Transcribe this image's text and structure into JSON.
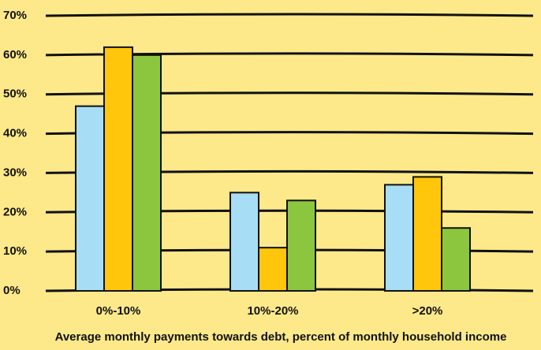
{
  "chart_data": {
    "type": "bar",
    "x_label": "Average monthly payments towards debt, percent of monthly household income",
    "categories": [
      "0%-10%",
      "10%-20%",
      ">20%"
    ],
    "series": [
      {
        "color": "#a8def5",
        "values": [
          47,
          25,
          27
        ]
      },
      {
        "color": "#ffc60b",
        "values": [
          62,
          11,
          29
        ]
      },
      {
        "color": "#8cc63f",
        "values": [
          60,
          23,
          16
        ]
      }
    ],
    "ylim": [
      0,
      70
    ],
    "yticks": [
      {
        "value": 0,
        "label": "0%"
      },
      {
        "value": 10,
        "label": "10%"
      },
      {
        "value": 20,
        "label": "20%"
      },
      {
        "value": 30,
        "label": "30%"
      },
      {
        "value": 40,
        "label": "40%"
      },
      {
        "value": 50,
        "label": "50%"
      },
      {
        "value": 60,
        "label": "60%"
      },
      {
        "value": 70,
        "label": "70%"
      }
    ],
    "grid": true
  }
}
